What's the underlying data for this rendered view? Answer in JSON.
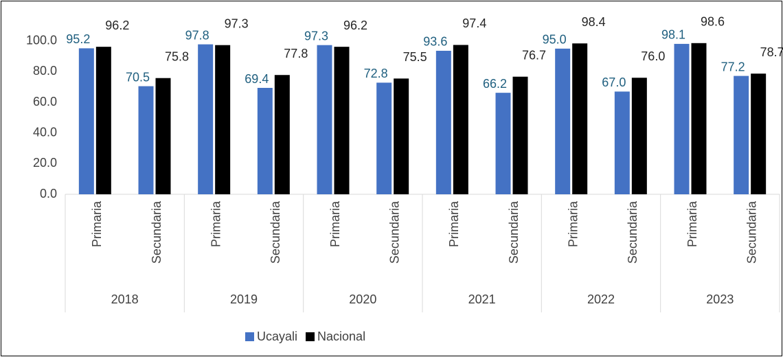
{
  "chart_data": {
    "type": "bar",
    "groups": [
      "2018",
      "2019",
      "2020",
      "2021",
      "2022",
      "2023"
    ],
    "categories": [
      "Primaria",
      "Secundaria",
      "Primaria",
      "Secundaria",
      "Primaria",
      "Secundaria",
      "Primaria",
      "Secundaria",
      "Primaria",
      "Secundaria",
      "Primaria",
      "Secundaria"
    ],
    "series": [
      {
        "name": "Ucayali",
        "color": "#4472c4",
        "label_color": "#1f5f7f",
        "values": [
          95.2,
          70.5,
          97.8,
          69.4,
          97.3,
          72.8,
          93.6,
          66.2,
          95.0,
          67.0,
          98.1,
          77.2
        ],
        "value_labels": [
          "95.2",
          "70.5",
          "97.8",
          "69.4",
          "97.3",
          "72.8",
          "93.6",
          "66.2",
          "95.0",
          "67.0",
          "98.1",
          "77.2"
        ]
      },
      {
        "name": "Nacional",
        "color": "#000000",
        "label_color": "#262626",
        "values": [
          96.2,
          75.8,
          97.3,
          77.8,
          96.2,
          75.5,
          97.4,
          76.7,
          98.4,
          76.0,
          98.6,
          78.7
        ],
        "value_labels": [
          "96.2",
          "75.8",
          "97.3",
          "77.8",
          "96.2",
          "75.5",
          "97.4",
          "76.7",
          "98.4",
          "76.0",
          "98.6",
          "78.7"
        ]
      }
    ],
    "ylim": [
      0,
      120
    ],
    "yticks": [
      {
        "value": 0,
        "label": "0.0"
      },
      {
        "value": 20,
        "label": "20.0"
      },
      {
        "value": 40,
        "label": "40.0"
      },
      {
        "value": 60,
        "label": "60.0"
      },
      {
        "value": 80,
        "label": "80.0"
      },
      {
        "value": 100,
        "label": "100.0"
      }
    ],
    "grid": false,
    "legend": "bottom"
  }
}
